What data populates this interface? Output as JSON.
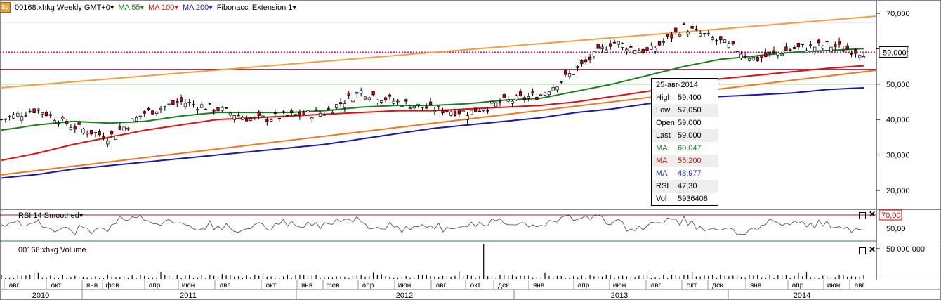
{
  "header": {
    "symbol_label": "00168:xhkg Weekly GMT+0",
    "ma55_label": "MA 55",
    "ma100_label": "MA 100",
    "ma200_label": "MA 200",
    "fib_label": "Fibonacci Extension 1",
    "dropdown_glyph": "▾",
    "icon_text": "Eq"
  },
  "colors": {
    "ma55": "#1e7d1e",
    "ma100": "#dd1111",
    "ma200": "#1a1aa8",
    "fib": "#f0a040",
    "fib_lower": "#ee7722",
    "pink": "#dd00aa",
    "candle_up": "#ffffff",
    "candle_down": "#cc0000"
  },
  "price_axis": {
    "ticks": [
      "70,000",
      "60,000",
      "50,000",
      "40,000",
      "30,000",
      "20,000"
    ],
    "current_price": "59,000"
  },
  "tooltip": {
    "date": "25-авг-2014",
    "rows": [
      {
        "k": "High",
        "v": "59,400",
        "color": "#000000"
      },
      {
        "k": "Low",
        "v": "57,050",
        "color": "#000000"
      },
      {
        "k": "Open",
        "v": "59,000",
        "color": "#000000"
      },
      {
        "k": "Last",
        "v": "59,000",
        "color": "#000000"
      },
      {
        "k": "MA",
        "v": "60,047",
        "color": "#1e7d1e"
      },
      {
        "k": "MA",
        "v": "55,200",
        "color": "#dd1111"
      },
      {
        "k": "MA",
        "v": "48,977",
        "color": "#1a1aa8"
      },
      {
        "k": "RSI",
        "v": "47,30",
        "color": "#000000"
      },
      {
        "k": "Vol",
        "v": "5936408",
        "color": "#000000"
      }
    ]
  },
  "rsi_pane": {
    "title": "RSI 14 Smoothed",
    "ticks": [
      "70,00",
      "50,00"
    ]
  },
  "volume_pane": {
    "title": "00168:xhkg Volume",
    "ticks": [
      "50 000 000"
    ]
  },
  "time_axis": {
    "months": [
      "авг",
      "окт",
      "янв",
      "фев",
      "апр",
      "июн",
      "авг",
      "окт",
      "янв",
      "фев",
      "апр",
      "июн",
      "авг",
      "окт",
      "дек",
      "янв",
      "апр",
      "июн",
      "авг",
      "окт",
      "дек",
      "янв",
      "апр",
      "июн",
      "авг"
    ],
    "years": [
      "2010",
      "2011",
      "2012",
      "2013",
      "2014"
    ]
  },
  "chart_data": {
    "type": "candlestick",
    "timeframe": "Weekly",
    "x_range": [
      "2010-07",
      "2014-08"
    ],
    "y_range": [
      15000,
      72000
    ],
    "close_approx": {
      "x": [
        "2010-08",
        "2010-10",
        "2011-01",
        "2011-02",
        "2011-04",
        "2011-06",
        "2011-08",
        "2011-10",
        "2012-01",
        "2012-02",
        "2012-04",
        "2012-06",
        "2012-08",
        "2012-10",
        "2012-12",
        "2013-01",
        "2013-04",
        "2013-06",
        "2013-08",
        "2013-10",
        "2013-12",
        "2014-01",
        "2014-04",
        "2014-06",
        "2014-08"
      ],
      "values": [
        40000,
        43000,
        38000,
        35000,
        42000,
        45000,
        43000,
        40000,
        41000,
        42000,
        48000,
        45000,
        43000,
        42000,
        45000,
        47000,
        54000,
        62000,
        59000,
        66000,
        62000,
        57000,
        60000,
        61000,
        59000
      ]
    },
    "ma55_approx": [
      37000,
      38500,
      39500,
      39000,
      39500,
      41000,
      42000,
      42000,
      42000,
      42500,
      43500,
      44000,
      44000,
      44500,
      45500,
      46000,
      48000,
      50000,
      52500,
      55000,
      57000,
      58000,
      59000,
      59500,
      60047
    ],
    "ma100_approx": [
      28500,
      30500,
      33000,
      35000,
      37000,
      38500,
      40000,
      40500,
      41000,
      41500,
      42000,
      42500,
      42500,
      43000,
      43500,
      44000,
      45000,
      46500,
      48000,
      50000,
      51500,
      52500,
      53500,
      54500,
      55200
    ],
    "ma200_approx": [
      23500,
      24500,
      26000,
      27000,
      28000,
      29000,
      30000,
      31000,
      32000,
      33000,
      34500,
      36000,
      37500,
      38500,
      39500,
      40500,
      42000,
      43000,
      44500,
      45500,
      46500,
      47000,
      47500,
      48500,
      48977
    ],
    "horizontal_levels": [
      67500,
      59000,
      54200,
      50000
    ],
    "last": 59000,
    "rsi": {
      "levels": [
        70,
        50
      ],
      "last": 47.3
    },
    "volume": {
      "max_tick": 50000000,
      "last": 5936408
    }
  }
}
